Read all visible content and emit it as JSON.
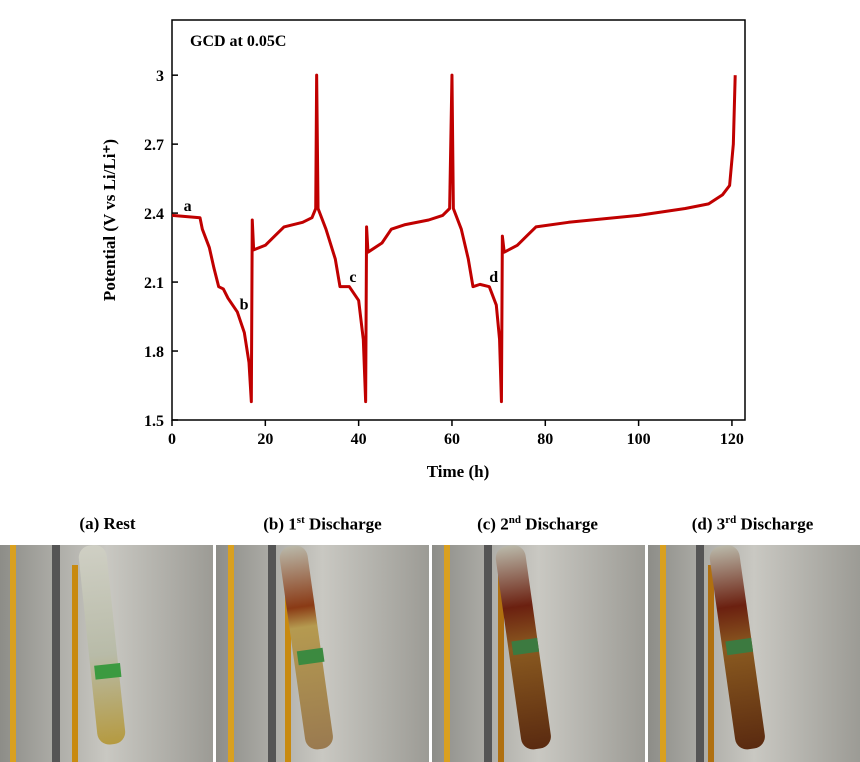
{
  "chart_data": {
    "type": "line",
    "annotation": "GCD at 0.05C",
    "x_label": "Time (h)",
    "y_label": "Potential (V vs Li/Li⁺)",
    "x": [
      0,
      6,
      6.5,
      8,
      9,
      10,
      11,
      12,
      14,
      15.5,
      16.5,
      17,
      17.2,
      17.5,
      20,
      22,
      24,
      28,
      30,
      30.8,
      31,
      31.3,
      33,
      35,
      36,
      38,
      40,
      41,
      41.5,
      41.7,
      42,
      45,
      47,
      50,
      55,
      58,
      59.5,
      60,
      60.3,
      62,
      63.5,
      64.5,
      66,
      68,
      69.5,
      70.2,
      70.6,
      70.8,
      71.2,
      74,
      76,
      78,
      85,
      100,
      110,
      115,
      118,
      119.5,
      120.3,
      120.7
    ],
    "series": [
      {
        "color": "#c00000",
        "values": [
          2.39,
          2.38,
          2.33,
          2.25,
          2.16,
          2.08,
          2.07,
          2.03,
          1.97,
          1.88,
          1.75,
          1.58,
          2.37,
          2.24,
          2.26,
          2.3,
          2.34,
          2.36,
          2.38,
          2.42,
          3.0,
          2.42,
          2.33,
          2.2,
          2.08,
          2.08,
          2.02,
          1.85,
          1.58,
          2.34,
          2.23,
          2.27,
          2.33,
          2.35,
          2.37,
          2.39,
          2.42,
          3.0,
          2.42,
          2.33,
          2.2,
          2.08,
          2.09,
          2.08,
          2.0,
          1.85,
          1.58,
          2.3,
          2.23,
          2.26,
          2.3,
          2.34,
          2.36,
          2.39,
          2.42,
          2.44,
          2.48,
          2.52,
          2.7,
          3.0
        ]
      }
    ],
    "point_labels": [
      {
        "text": "a",
        "x": 2.5,
        "y": 2.41
      },
      {
        "text": "b",
        "x": 14.5,
        "y": 1.98
      },
      {
        "text": "c",
        "x": 38,
        "y": 2.1
      },
      {
        "text": "d",
        "x": 68,
        "y": 2.1
      }
    ],
    "xlim": [
      0,
      122.8
    ],
    "ylim": [
      1.5,
      3.24
    ],
    "xticks": [
      0,
      20,
      40,
      60,
      80,
      100,
      120
    ],
    "yticks": [
      1.5,
      1.8,
      2.1,
      2.4,
      2.7,
      3.0
    ]
  },
  "panels": [
    {
      "prefix": "(a) Rest"
    },
    {
      "prefix": "(b) 1",
      "sup": "st",
      "suffix": " Discharge"
    },
    {
      "prefix": "(c) 2",
      "sup": "nd",
      "suffix": " Discharge"
    },
    {
      "prefix": "(d) 3",
      "sup": "rd",
      "suffix": " Discharge"
    }
  ]
}
